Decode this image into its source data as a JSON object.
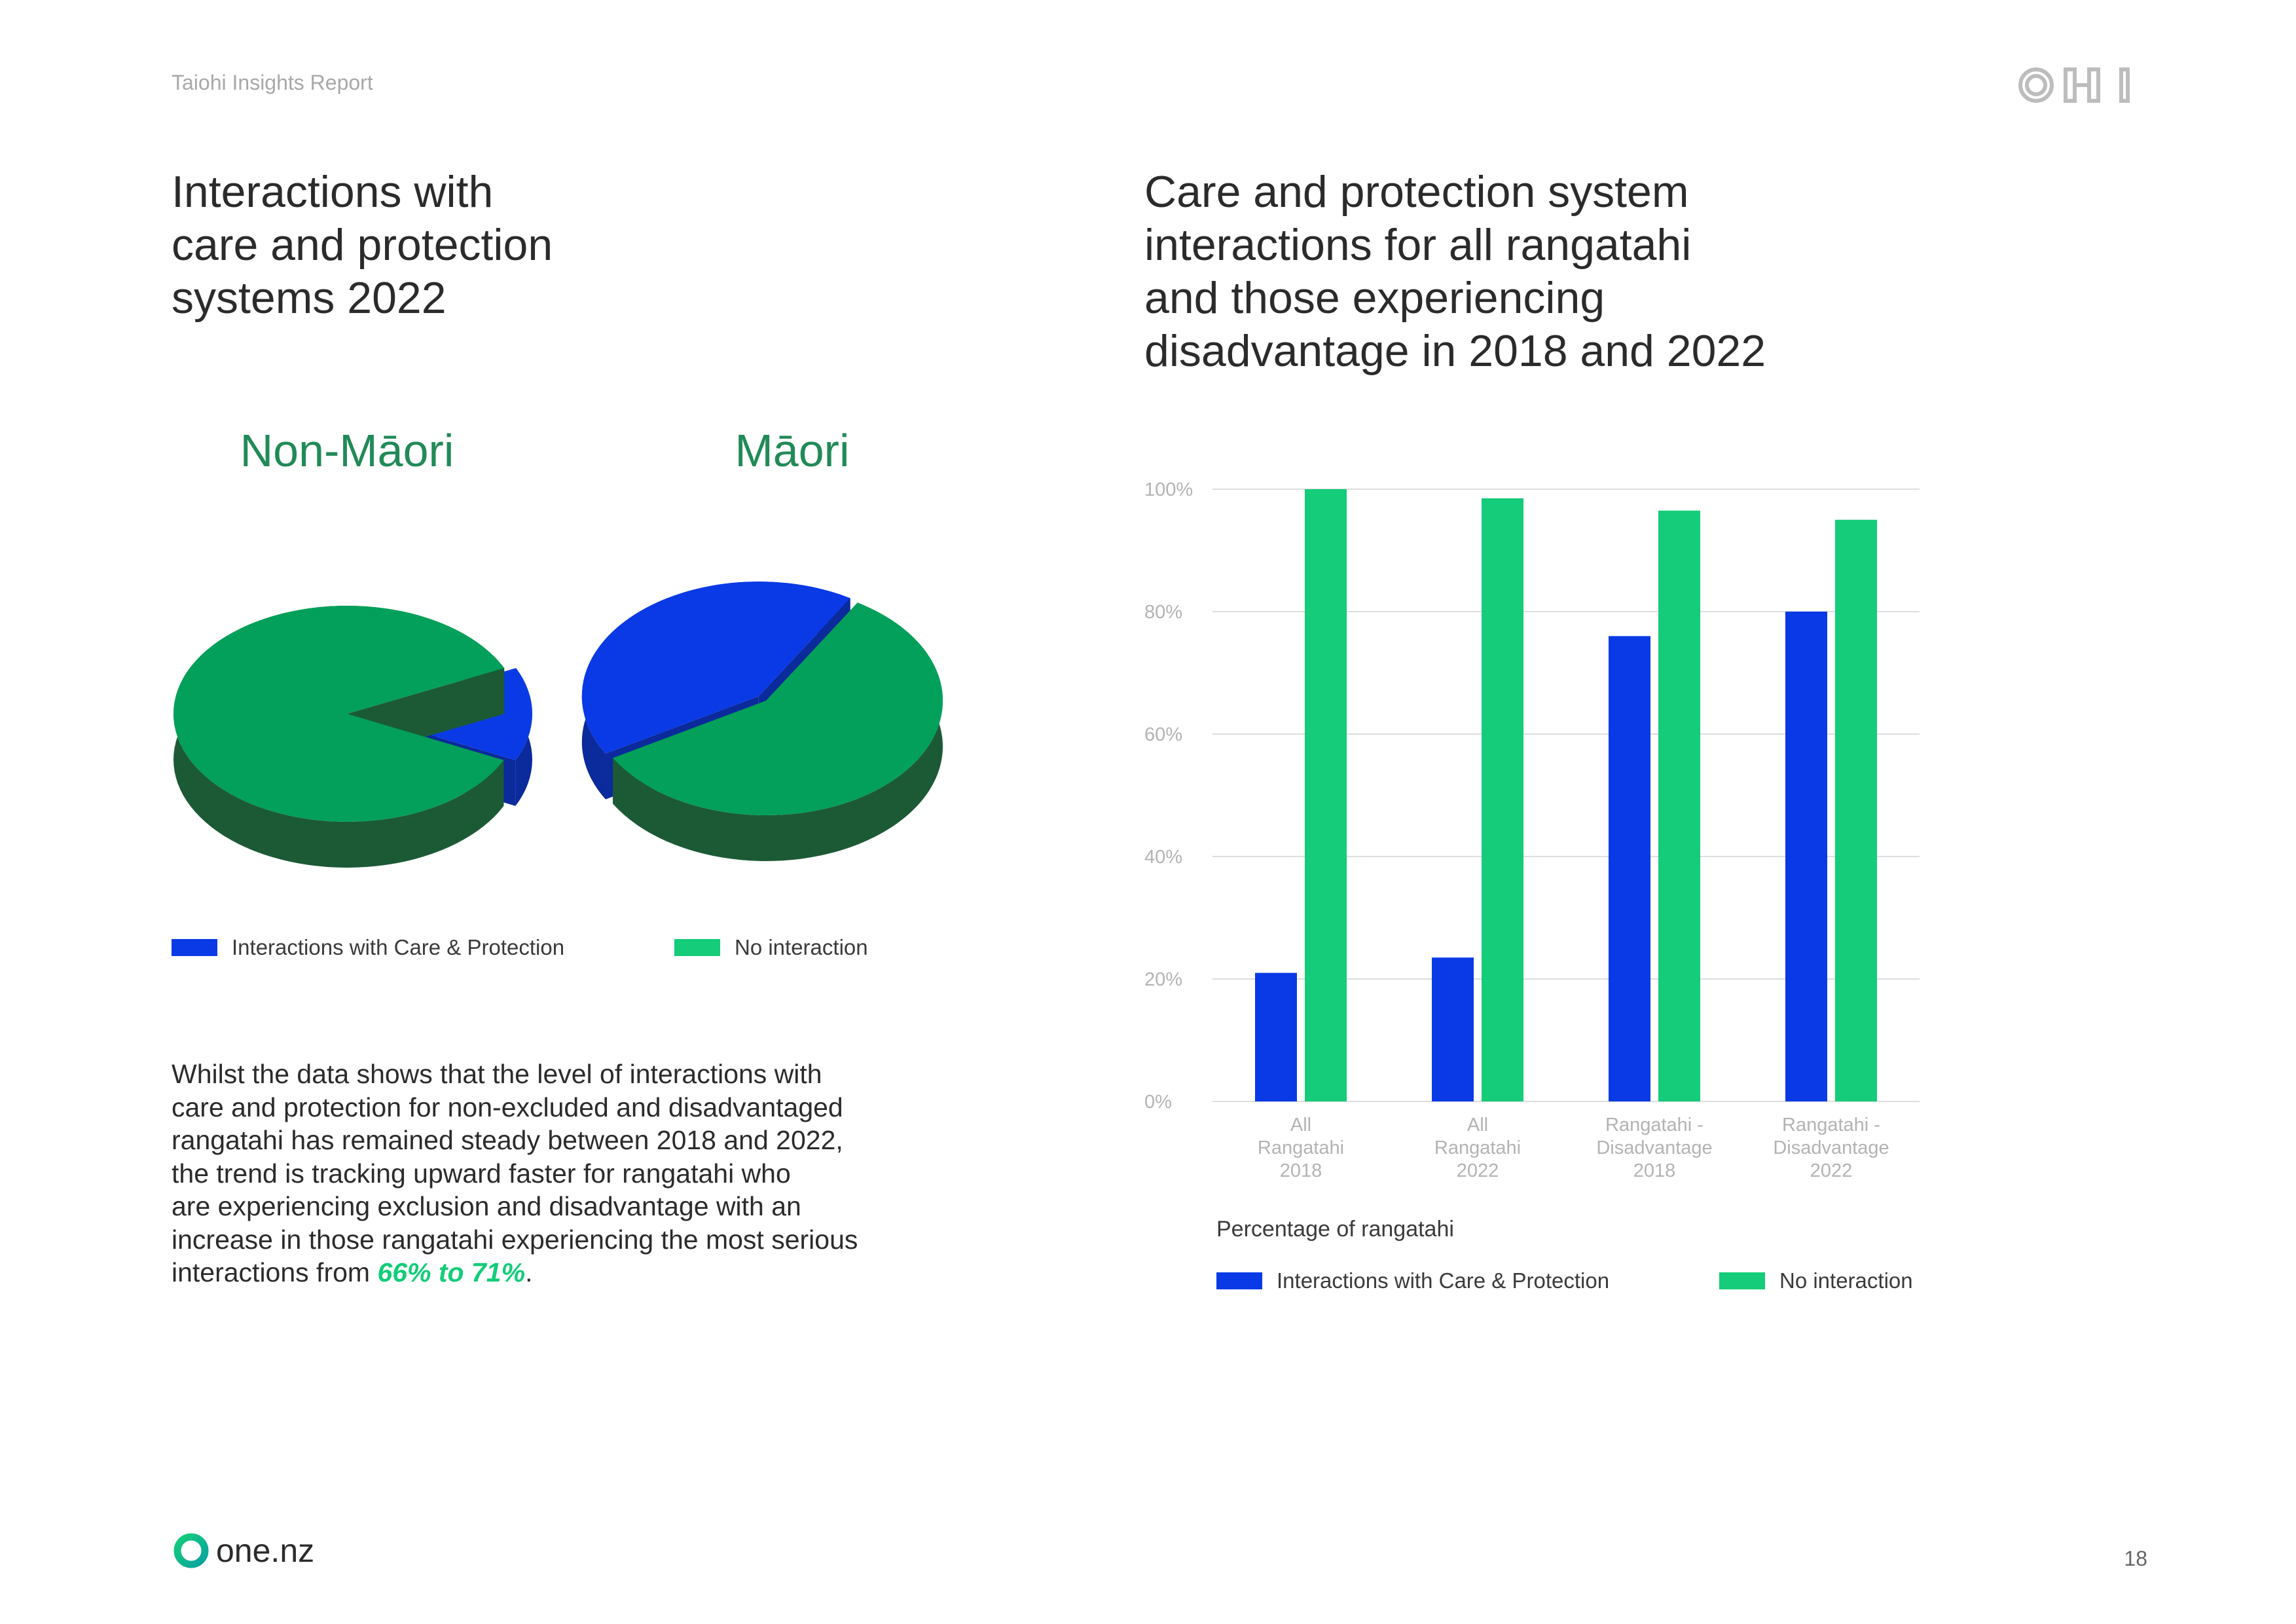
{
  "header": {
    "report_label": "Taiohi Insights Report",
    "brand_logo": "OHI"
  },
  "left": {
    "title_lines": [
      "Interactions with",
      "care and protection",
      "systems 2022"
    ],
    "pie_labels": {
      "non_maori": "Non-Māori",
      "maori": "Māori"
    },
    "legend": {
      "interactions": "Interactions with Care & Protection",
      "no_interaction": "No interaction"
    },
    "body_lines": [
      "Whilst the data shows that the level of interactions with",
      "care and protection for non-excluded and disadvantaged",
      "rangatahi has remained steady between 2018 and 2022,",
      "the trend is tracking upward faster for rangatahi who",
      "are experiencing exclusion and disadvantage with an",
      "increase in those rangatahi experiencing the most serious"
    ],
    "body_last_prefix": "interactions from ",
    "body_highlight": "66% to 71%",
    "body_last_suffix": "."
  },
  "right": {
    "title_lines": [
      "Care and protection system",
      "interactions for all rangatahi",
      "and those experiencing",
      "disadvantage in 2018 and 2022"
    ],
    "axis_title": "Percentage of rangatahi",
    "legend": {
      "interactions": "Interactions with Care & Protection",
      "no_interaction": "No interaction"
    }
  },
  "chart_data": [
    {
      "type": "pie",
      "title": "Non-Māori",
      "slices": [
        {
          "name": "Interactions with Care & Protection",
          "value": 14
        },
        {
          "name": "No interaction",
          "value": 86
        }
      ]
    },
    {
      "type": "pie",
      "title": "Māori",
      "slices": [
        {
          "name": "Interactions with Care & Protection",
          "value": 42
        },
        {
          "name": "No interaction",
          "value": 58
        }
      ]
    },
    {
      "type": "bar",
      "title": "Care and protection system interactions for all rangatahi and those experiencing disadvantage in 2018 and 2022",
      "xlabel": "",
      "ylabel": "",
      "categories": [
        [
          "All",
          "Rangatahi",
          "2018"
        ],
        [
          "All",
          "Rangatahi",
          "2022"
        ],
        [
          "Rangatahi -",
          "Disadvantage",
          "2018"
        ],
        [
          "Rangatahi -",
          "Disadvantage",
          "2022"
        ]
      ],
      "series": [
        {
          "name": "Interactions with Care & Protection",
          "values": [
            21,
            23.5,
            76,
            80
          ]
        },
        {
          "name": "No interaction",
          "values": [
            100,
            98.5,
            96.5,
            95
          ]
        }
      ],
      "ylim": [
        0,
        100
      ],
      "yticks": [
        "0%",
        "20%",
        "40%",
        "60%",
        "80%",
        "100%"
      ],
      "grid": true,
      "legend": "bottom"
    }
  ],
  "footer": {
    "brand": "one.nz",
    "page_number": "18"
  },
  "colors": {
    "blue": "#0a3ae6",
    "green": "#14cc79",
    "pie_green": "#02a05a",
    "heading_green": "#218a57"
  }
}
